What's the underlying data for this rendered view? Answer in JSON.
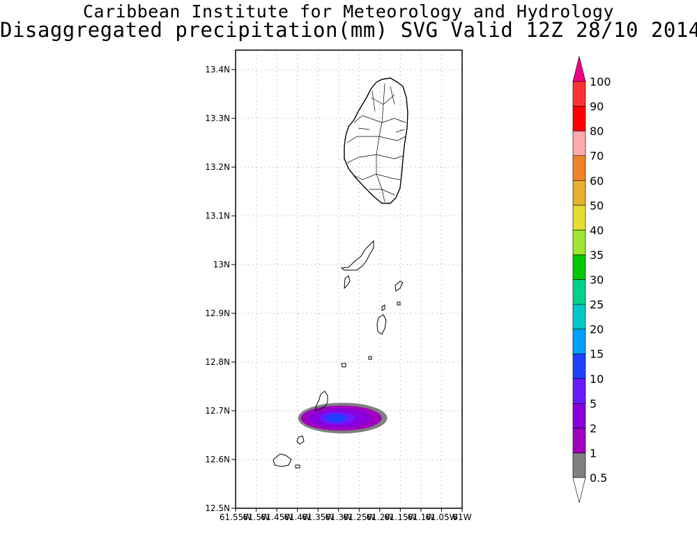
{
  "header": {
    "title": "Caribbean Institute for Meteorology and Hydrology",
    "subtitle": "Disaggregated precipitation(mm) SVG Valid 12Z 28/10 2014"
  },
  "map": {
    "lon_range": [
      -61.55,
      -61.0
    ],
    "lat_range": [
      12.5,
      13.44
    ],
    "lat_ticks": [
      {
        "value": 12.5,
        "label": "12.5N"
      },
      {
        "value": 12.6,
        "label": "12.6N"
      },
      {
        "value": 12.7,
        "label": "12.7N"
      },
      {
        "value": 12.8,
        "label": "12.8N"
      },
      {
        "value": 12.9,
        "label": "12.9N"
      },
      {
        "value": 13.0,
        "label": "13N"
      },
      {
        "value": 13.1,
        "label": "13.1N"
      },
      {
        "value": 13.2,
        "label": "13.2N"
      },
      {
        "value": 13.3,
        "label": "13.3N"
      },
      {
        "value": 13.4,
        "label": "13.4N"
      }
    ],
    "lon_ticks": [
      {
        "value": -61.55,
        "label": "61.55W"
      },
      {
        "value": -61.5,
        "label": "61.5W"
      },
      {
        "value": -61.45,
        "label": "61.45W"
      },
      {
        "value": -61.4,
        "label": "61.4W"
      },
      {
        "value": -61.35,
        "label": "61.35W"
      },
      {
        "value": -61.3,
        "label": "61.3W"
      },
      {
        "value": -61.25,
        "label": "61.25W"
      },
      {
        "value": -61.2,
        "label": "61.2W"
      },
      {
        "value": -61.15,
        "label": "61.15W"
      },
      {
        "value": -61.1,
        "label": "61.1W"
      },
      {
        "value": -61.05,
        "label": "61.05W"
      },
      {
        "value": -61.0,
        "label": "61W"
      }
    ],
    "grid": true,
    "precip_center": {
      "lon": -61.29,
      "lat": 12.685
    },
    "precip_levels_mm": [
      0.5,
      1,
      2,
      5
    ]
  },
  "colorbar": {
    "labels": [
      "0.5",
      "1",
      "2",
      "5",
      "10",
      "15",
      "20",
      "25",
      "30",
      "35",
      "40",
      "50",
      "60",
      "70",
      "80",
      "90",
      "100"
    ],
    "colors": [
      "#808080",
      "#a000c0",
      "#8a00dc",
      "#6a1aff",
      "#2040ff",
      "#00a0ff",
      "#00c8c8",
      "#00d28c",
      "#00c800",
      "#a0e632",
      "#e6dc32",
      "#e6af2d",
      "#f08228",
      "#ffaaaa",
      "#ff0000",
      "#ff3232",
      "#f00082"
    ],
    "below_color": "#ffffff",
    "above_color": "#f00082"
  }
}
